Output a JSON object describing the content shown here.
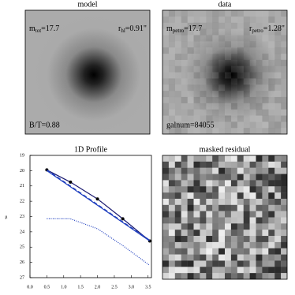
{
  "panels": [
    {
      "title": "model",
      "magnitude": {
        "symbol": "m",
        "subscript": "tot",
        "value": "=17.7"
      },
      "radius": {
        "symbol": "r",
        "subscript": "hl",
        "value": "=0.91\""
      },
      "note": "B/T=0.88"
    },
    {
      "title": "data",
      "magnitude": {
        "symbol": "m",
        "subscript": "petro",
        "value": "=17.7"
      },
      "radius": {
        "symbol": "r",
        "subscript": "petro",
        "value": "=1.28\""
      },
      "note": "galnum=84055"
    },
    {
      "title": "masked residual"
    }
  ],
  "chart_data": {
    "type": "line",
    "title": "1D Profile",
    "ylabel": "μ",
    "xlim": [
      0,
      3.6
    ],
    "xticks": [
      {
        "value": 0,
        "label": "0.0"
      },
      0.5,
      {
        "value": 1,
        "label": "1.0"
      },
      1.5,
      {
        "value": 2,
        "label": "2.0"
      },
      2.5,
      {
        "value": 3,
        "label": "3.0"
      },
      3.5
    ],
    "ylim": [
      19,
      27
    ],
    "y_inverted": true,
    "yticks": [
      19,
      20,
      21,
      22,
      23,
      24,
      25,
      26,
      27
    ],
    "series": [
      {
        "color": "#1a1a70",
        "style": "solid",
        "markers": true,
        "x": [
          0.5,
          1.2,
          2.0,
          2.75,
          3.55
        ],
        "values": [
          19.95,
          20.75,
          21.85,
          23.15,
          24.6
        ]
      },
      {
        "color": "#1f3fbf",
        "style": "solid",
        "markers": false,
        "x": [
          0.5,
          3.55
        ],
        "values": [
          20.0,
          24.6
        ]
      },
      {
        "color": "#1f3fbf",
        "style": "dashed",
        "markers": false,
        "x": [
          0.5,
          3.55
        ],
        "values": [
          19.95,
          24.55
        ]
      },
      {
        "color": "#1f3fbf",
        "style": "dotted",
        "markers": false,
        "x": [
          0.5,
          1.2,
          2.0,
          2.75,
          3.55
        ],
        "values": [
          23.15,
          23.15,
          23.8,
          24.9,
          26.2
        ]
      }
    ]
  }
}
